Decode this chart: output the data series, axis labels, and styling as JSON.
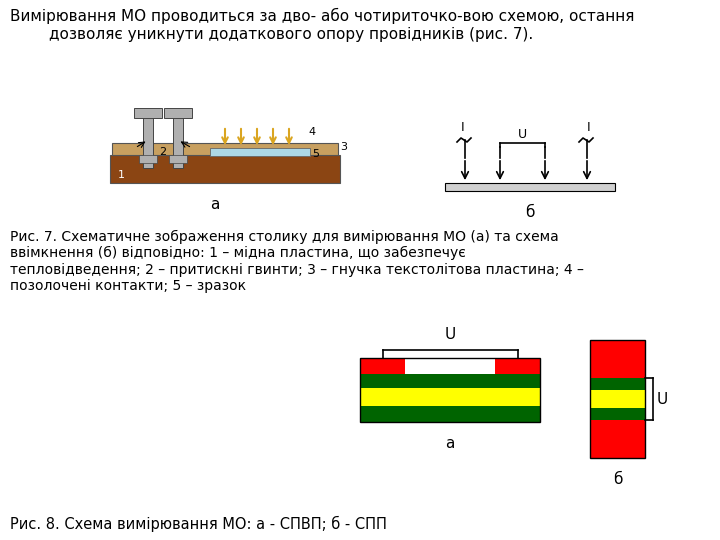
{
  "title_text": "Вимірювання МО проводиться за дво- або чотириточко-вою схемою, остання\n        дозволяє уникнути додаткового опору провідників (рис. 7).",
  "caption7": "Рис. 7. Схематичне зображення столику для вимірювання МО (а) та схема\nввімкнення (б) відповідно: 1 – мідна пластина, що забезпечує\nтепловідведення; 2 – притискні гвинти; 3 – гнучка текстолітова пластина; 4 –\nпозолочені контакти; 5 – зразок",
  "caption8": "Рис. 8. Схема вимірювання МО: а - СПВП; б - СПП",
  "label_a1": "а",
  "label_b1": "б",
  "label_a2": "а",
  "label_b2": "б",
  "bg_color": "#ffffff",
  "text_color": "#000000",
  "red": "#ff0000",
  "green": "#008000",
  "yellow": "#ffff00",
  "dark_green": "#006400",
  "brown": "#8B4513",
  "tan": "#C8A060",
  "gray": "#b0b0b0",
  "light_blue": "#add8e6",
  "gold": "#DAA520"
}
